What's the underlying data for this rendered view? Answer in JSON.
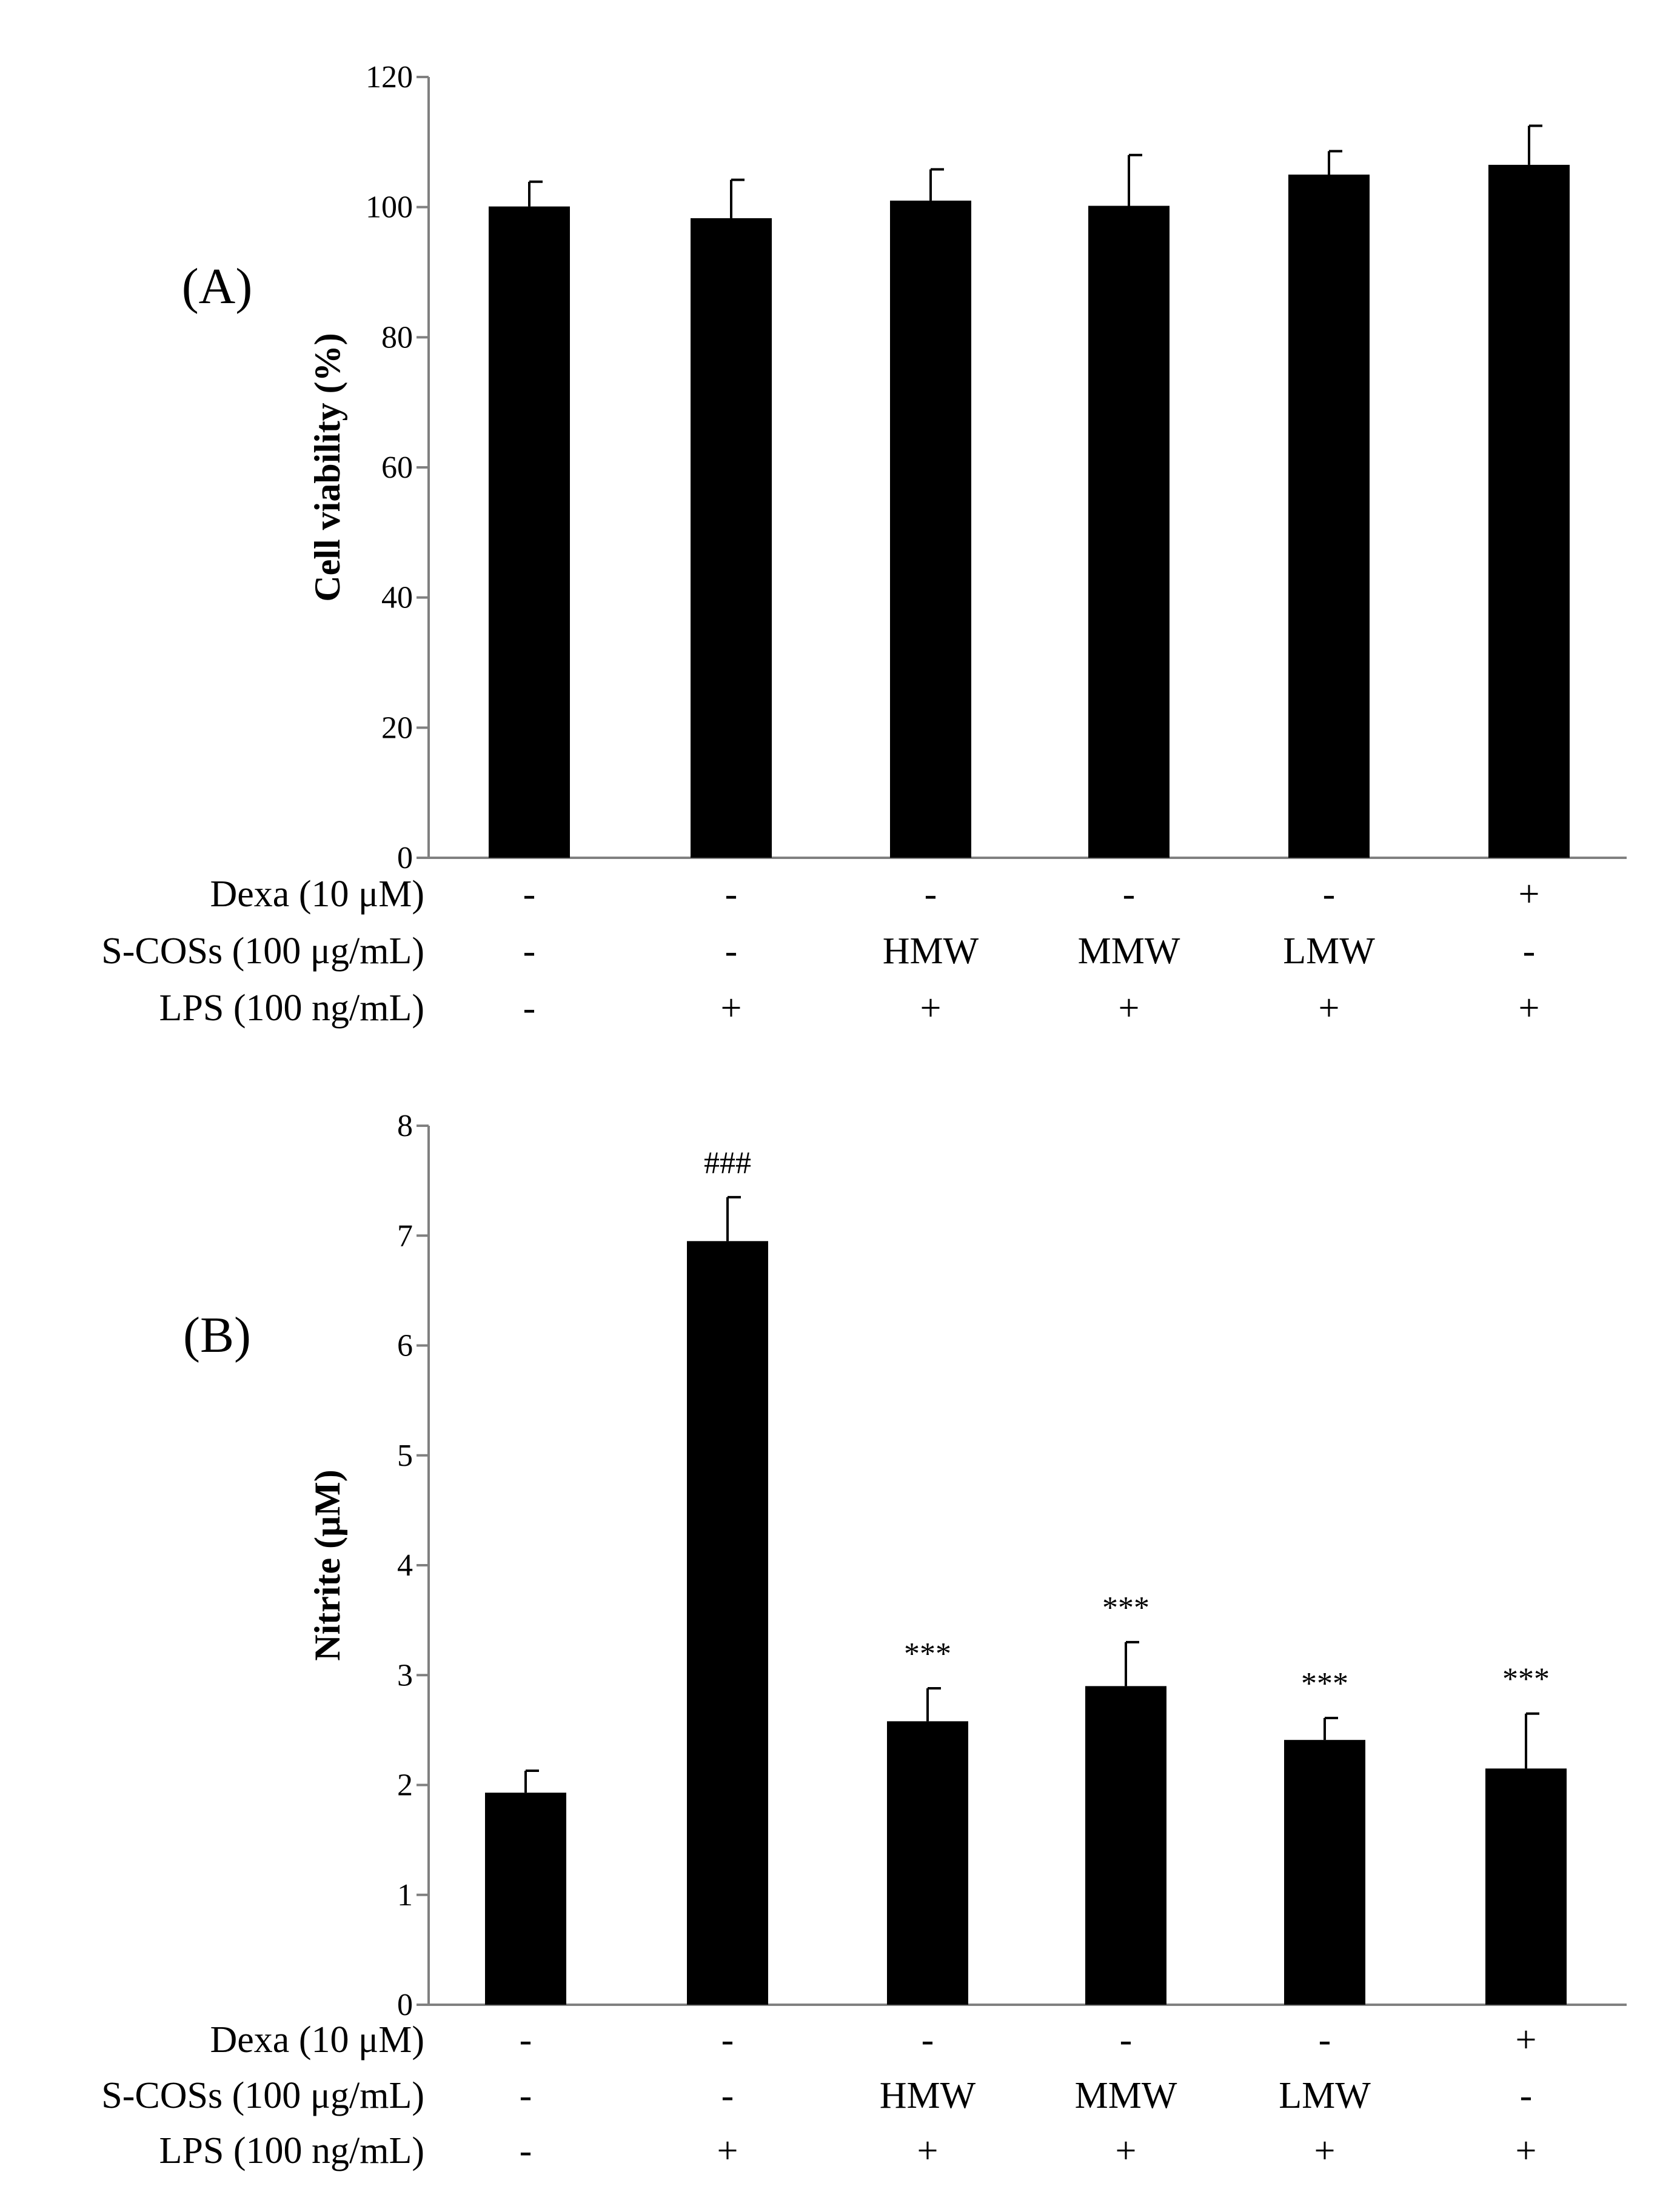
{
  "colors": {
    "bar": "#000000",
    "axis": "#808080",
    "text": "#000000",
    "background": "#ffffff"
  },
  "chart_data": [
    {
      "type": "bar",
      "panel_label": "(A)",
      "title": "",
      "xlabel": "",
      "ylabel": "Cell viability (%)",
      "ylim": [
        0,
        120
      ],
      "yticks": [
        0,
        20,
        40,
        60,
        80,
        100,
        120
      ],
      "grid": false,
      "values": [
        100.1,
        98.3,
        101.0,
        100.2,
        105.0,
        106.5
      ],
      "errors": [
        3.8,
        5.9,
        4.8,
        7.8,
        3.6,
        6.0
      ],
      "significance": [
        "",
        "",
        "",
        "",
        "",
        ""
      ],
      "conditions": [
        {
          "label": "Dexa (10 μM)",
          "values": [
            "-",
            "-",
            "-",
            "-",
            "-",
            "+"
          ]
        },
        {
          "label": "S-COSs (100 μg/mL)",
          "values": [
            "-",
            "-",
            "HMW",
            "MMW",
            "LMW",
            "-"
          ]
        },
        {
          "label": "LPS (100 ng/mL)",
          "values": [
            "-",
            "+",
            "+",
            "+",
            "+",
            "+"
          ]
        }
      ]
    },
    {
      "type": "bar",
      "panel_label": "(B)",
      "title": "",
      "xlabel": "",
      "ylabel": "Nitrite (μM)",
      "ylim": [
        0,
        8
      ],
      "yticks": [
        0,
        1,
        2,
        3,
        4,
        5,
        6,
        7,
        8
      ],
      "grid": false,
      "values": [
        1.93,
        6.95,
        2.58,
        2.9,
        2.41,
        2.15
      ],
      "errors": [
        0.2,
        0.4,
        0.3,
        0.4,
        0.2,
        0.5
      ],
      "significance": [
        "",
        "###",
        "***",
        "***",
        "***",
        "***"
      ],
      "conditions": [
        {
          "label": "Dexa (10 μM)",
          "values": [
            "-",
            "-",
            "-",
            "-",
            "-",
            "+"
          ]
        },
        {
          "label": "S-COSs (100 μg/mL)",
          "values": [
            "-",
            "-",
            "HMW",
            "MMW",
            "LMW",
            "-"
          ]
        },
        {
          "label": "LPS (100 ng/mL)",
          "values": [
            "-",
            "+",
            "+",
            "+",
            "+",
            "+"
          ]
        }
      ]
    }
  ]
}
